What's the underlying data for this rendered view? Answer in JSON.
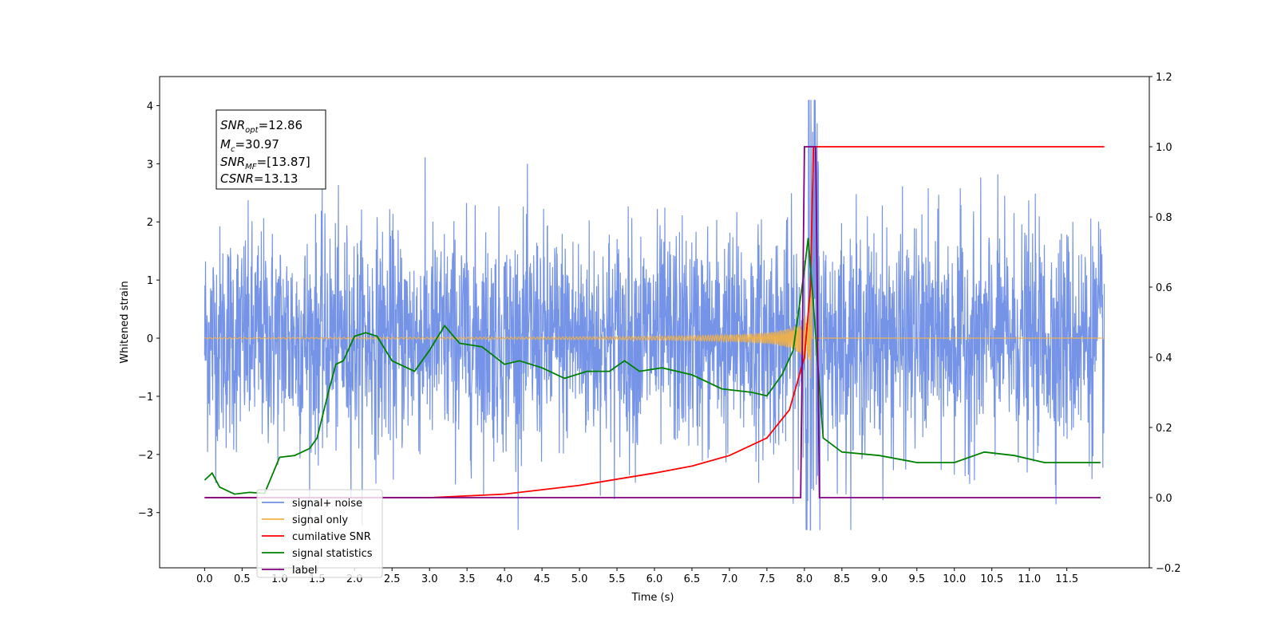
{
  "chart_data": {
    "type": "line",
    "xlabel": "Time (s)",
    "ylabel": "Whitened strain",
    "xlim": [
      -0.6,
      12.6
    ],
    "ylim_left": [
      -3.95,
      4.5
    ],
    "ylim_right": [
      -0.2,
      1.2
    ],
    "x_ticks": [
      "0.0",
      "0.5",
      "1.0",
      "1.5",
      "2.0",
      "2.5",
      "3.0",
      "3.5",
      "4.0",
      "4.5",
      "5.0",
      "5.5",
      "6.0",
      "6.5",
      "7.0",
      "7.5",
      "8.0",
      "8.5",
      "9.0",
      "9.5",
      "10.0",
      "10.5",
      "11.0",
      "11.5"
    ],
    "y_ticks_left": [
      "−3",
      "−2",
      "−1",
      "0",
      "1",
      "2",
      "3",
      "4"
    ],
    "y_ticks_right": [
      "−0.2",
      "0.0",
      "0.2",
      "0.4",
      "0.6",
      "0.8",
      "1.0",
      "1.2"
    ],
    "grid": false,
    "legend_position": "lower-left",
    "annotation": {
      "snr_opt": {
        "main": "SNR",
        "sub": "opt",
        "value": "=12.86"
      },
      "mc": {
        "main": "M",
        "sub": "c",
        "value": "=30.97"
      },
      "snr_mf": {
        "main": "SNR",
        "sub": "MF",
        "value": "=[13.87]"
      },
      "csnr": {
        "main": "CSNR",
        "sub": "",
        "value": "=13.13"
      }
    },
    "series": [
      {
        "name": "signal+ noise",
        "axis": "left",
        "color": "#6f8ee6",
        "kind": "noise",
        "x_range": [
          0.0,
          12.0
        ],
        "amplitude_sigma": 1.0,
        "peak_time": 8.1,
        "peak_value": 4.1
      },
      {
        "name": "signal only",
        "axis": "left",
        "color": "#f5b041",
        "kind": "chirp",
        "x_range": [
          0.0,
          12.0
        ],
        "peak_time": 8.1,
        "peak_amplitude": 1.0
      },
      {
        "name": "cumilative SNR",
        "axis": "right",
        "color": "#ff0000",
        "points": [
          [
            0.0,
            0.0
          ],
          [
            2.0,
            0.0
          ],
          [
            3.0,
            0.0
          ],
          [
            4.0,
            0.01
          ],
          [
            5.0,
            0.035
          ],
          [
            6.0,
            0.07
          ],
          [
            6.5,
            0.09
          ],
          [
            7.0,
            0.12
          ],
          [
            7.5,
            0.17
          ],
          [
            7.8,
            0.25
          ],
          [
            8.0,
            0.4
          ],
          [
            8.08,
            0.6
          ],
          [
            8.12,
            1.0
          ],
          [
            12.0,
            1.0
          ]
        ]
      },
      {
        "name": "signal statistics",
        "axis": "right",
        "color": "#008000",
        "points": [
          [
            0.0,
            0.05
          ],
          [
            0.1,
            0.07
          ],
          [
            0.2,
            0.03
          ],
          [
            0.4,
            0.01
          ],
          [
            0.6,
            0.015
          ],
          [
            0.8,
            0.012
          ],
          [
            1.0,
            0.115
          ],
          [
            1.2,
            0.12
          ],
          [
            1.4,
            0.14
          ],
          [
            1.5,
            0.17
          ],
          [
            1.65,
            0.3
          ],
          [
            1.75,
            0.38
          ],
          [
            1.85,
            0.39
          ],
          [
            2.0,
            0.46
          ],
          [
            2.15,
            0.47
          ],
          [
            2.3,
            0.46
          ],
          [
            2.5,
            0.39
          ],
          [
            2.8,
            0.36
          ],
          [
            3.0,
            0.42
          ],
          [
            3.2,
            0.49
          ],
          [
            3.4,
            0.44
          ],
          [
            3.7,
            0.43
          ],
          [
            4.0,
            0.38
          ],
          [
            4.2,
            0.39
          ],
          [
            4.5,
            0.37
          ],
          [
            4.8,
            0.34
          ],
          [
            5.1,
            0.36
          ],
          [
            5.4,
            0.36
          ],
          [
            5.6,
            0.39
          ],
          [
            5.8,
            0.36
          ],
          [
            6.1,
            0.37
          ],
          [
            6.5,
            0.35
          ],
          [
            6.9,
            0.31
          ],
          [
            7.3,
            0.3
          ],
          [
            7.5,
            0.29
          ],
          [
            7.7,
            0.35
          ],
          [
            7.85,
            0.42
          ],
          [
            8.0,
            0.65
          ],
          [
            8.05,
            0.74
          ],
          [
            8.12,
            0.55
          ],
          [
            8.25,
            0.17
          ],
          [
            8.5,
            0.13
          ],
          [
            9.0,
            0.12
          ],
          [
            9.5,
            0.1
          ],
          [
            10.0,
            0.1
          ],
          [
            10.4,
            0.13
          ],
          [
            10.8,
            0.12
          ],
          [
            11.2,
            0.1
          ],
          [
            11.6,
            0.1
          ],
          [
            11.95,
            0.1
          ]
        ]
      },
      {
        "name": "label",
        "axis": "right",
        "color": "#800080",
        "points": [
          [
            0.0,
            0.0
          ],
          [
            7.95,
            0.0
          ],
          [
            8.0,
            1.0
          ],
          [
            8.15,
            1.0
          ],
          [
            8.2,
            0.0
          ],
          [
            11.95,
            0.0
          ]
        ]
      }
    ]
  }
}
